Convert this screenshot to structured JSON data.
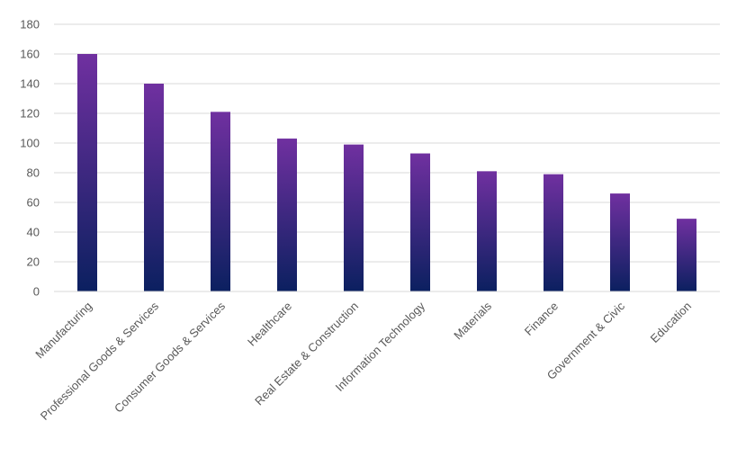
{
  "chart_data": {
    "type": "bar",
    "title": "",
    "xlabel": "",
    "ylabel": "",
    "categories": [
      "Manufacturing",
      "Professional Goods & Services",
      "Consumer Goods & Services",
      "Healthcare",
      "Real Estate & Construction",
      "Information Technology",
      "Materials",
      "Finance",
      "Government & Civic",
      "Education"
    ],
    "values": [
      160,
      140,
      121,
      103,
      99,
      93,
      81,
      79,
      66,
      49
    ],
    "ylim": [
      0,
      180
    ],
    "yticks": [
      0,
      20,
      40,
      60,
      80,
      100,
      120,
      140,
      160,
      180
    ],
    "grid": true,
    "legend": "none",
    "bar_gradient": {
      "top": "#7030a0",
      "bottom": "#0b2060"
    }
  }
}
